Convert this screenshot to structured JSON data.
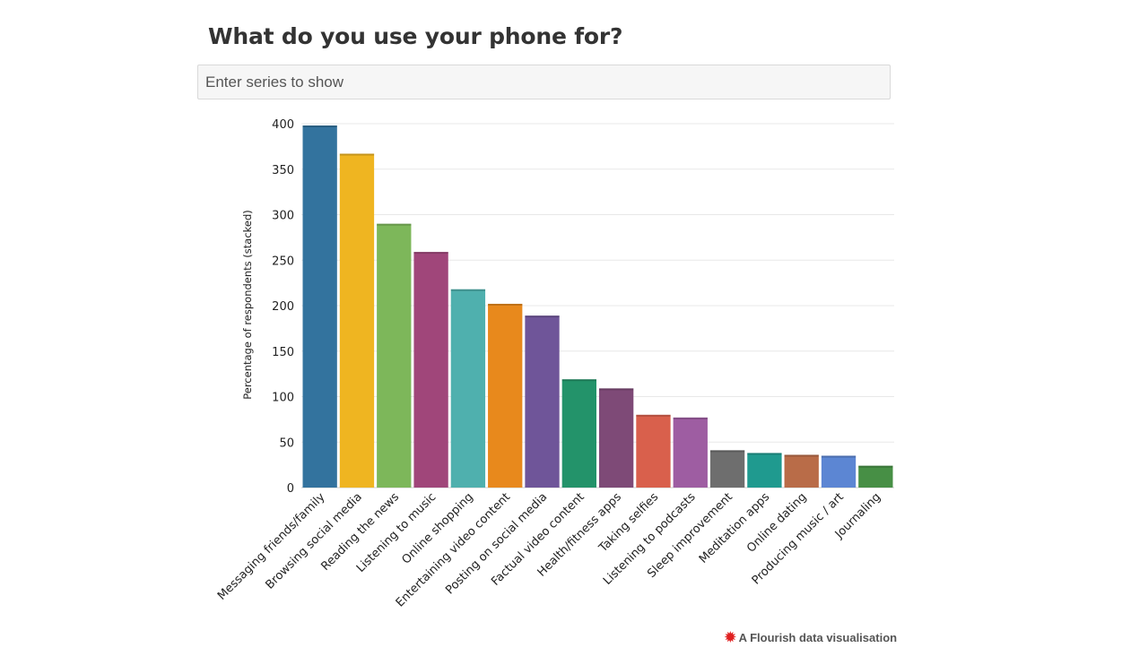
{
  "search": {
    "placeholder": "Enter series to show"
  },
  "footer": {
    "credit": "A Flourish data visualisation"
  },
  "colors": {
    "bars": [
      "#33739e",
      "#efb521",
      "#7db75a",
      "#a0467a",
      "#4fb0ae",
      "#e8891c",
      "#6f5599",
      "#23936a",
      "#7e4a77",
      "#d9604c",
      "#9e5da2",
      "#6e6e6e",
      "#1f9a8f",
      "#b96c48",
      "#5c86d3",
      "#478f45"
    ],
    "grid": "#e8e8e8"
  },
  "chart_data": {
    "type": "bar",
    "title": "What do you use your phone for?",
    "xlabel": "",
    "ylabel": "Percentage of respondents (stacked)",
    "ylim": [
      0,
      400
    ],
    "yticks": [
      0,
      50,
      100,
      150,
      200,
      250,
      300,
      350,
      400
    ],
    "grid": true,
    "categories": [
      "Messaging friends/family",
      "Browsing social media",
      "Reading the news",
      "Listening to music",
      "Online shopping",
      "Entertaining video content",
      "Posting on social media",
      "Factual video content",
      "Health/fitness apps",
      "Taking selfies",
      "Listening to podcasts",
      "Sleep improvement",
      "Meditation apps",
      "Online dating",
      "Producing music / art",
      "Journaling"
    ],
    "values": [
      398,
      367,
      290,
      259,
      218,
      202,
      189,
      119,
      109,
      80,
      77,
      41,
      38,
      36,
      35,
      24
    ]
  }
}
